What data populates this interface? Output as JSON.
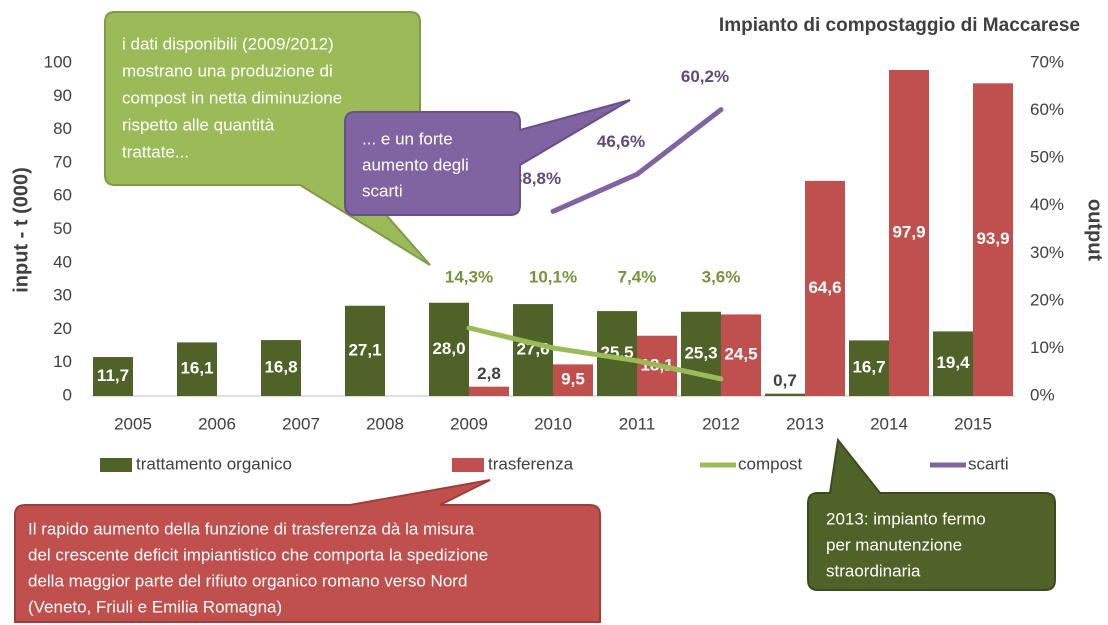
{
  "chart_data": {
    "type": "bar",
    "title": "Impianto di compostaggio di Maccarese",
    "ylabel": "input - t (000)",
    "y2label": "output",
    "categories": [
      "2005",
      "2006",
      "2007",
      "2008",
      "2009",
      "2010",
      "2011",
      "2012",
      "2013",
      "2014",
      "2015"
    ],
    "ylim": [
      0,
      100
    ],
    "yticks": [
      0,
      10,
      20,
      30,
      40,
      50,
      60,
      70,
      80,
      90,
      100
    ],
    "y2lim": [
      0,
      70
    ],
    "y2ticks": [
      {
        "value": 0,
        "label": "0%"
      },
      {
        "value": 10,
        "label": "10%"
      },
      {
        "value": 20,
        "label": "20%"
      },
      {
        "value": 30,
        "label": "30%"
      },
      {
        "value": 40,
        "label": "40%"
      },
      {
        "value": 50,
        "label": "50%"
      },
      {
        "value": 60,
        "label": "60%"
      },
      {
        "value": 70,
        "label": "70%"
      }
    ],
    "grid": false,
    "series": [
      {
        "name": "trattamento organico",
        "type": "bar",
        "color": "#4f6228",
        "values": [
          11.7,
          16.1,
          16.8,
          27.1,
          28.0,
          27.6,
          25.5,
          25.3,
          0.7,
          16.7,
          19.4
        ],
        "value_labels": [
          "11,7",
          "16,1",
          "16,8",
          "27,1",
          "28,0",
          "27,6",
          "25,5",
          "25,3",
          "0,7",
          "16,7",
          "19,4"
        ]
      },
      {
        "name": "trasferenza",
        "type": "bar",
        "color": "#c0504d",
        "values": [
          null,
          null,
          null,
          null,
          2.8,
          9.5,
          18.1,
          24.5,
          64.6,
          97.9,
          93.9
        ],
        "value_labels": [
          null,
          null,
          null,
          null,
          "2,8",
          "9,5",
          "18,1",
          "24,5",
          "64,6",
          "97,9",
          "93,9"
        ]
      },
      {
        "name": "compost",
        "type": "line",
        "axis": "y2",
        "color": "#9bbb59",
        "values": [
          null,
          null,
          null,
          null,
          14.3,
          10.1,
          7.4,
          3.6,
          null,
          null,
          null
        ],
        "value_labels": [
          null,
          null,
          null,
          null,
          "14,3%",
          "10,1%",
          "7,4%",
          "3,6%",
          null,
          null,
          null
        ]
      },
      {
        "name": "scarti",
        "type": "line",
        "axis": "y2",
        "color": "#8064a2",
        "values": [
          null,
          null,
          null,
          null,
          null,
          38.8,
          46.6,
          60.2,
          null,
          null,
          null
        ],
        "value_labels": [
          null,
          null,
          null,
          null,
          null,
          "38,8%",
          "46,6%",
          "60,2%",
          null,
          null,
          null
        ]
      }
    ],
    "annotations": [
      {
        "lines": [
          "i dati disponibili (2009/2012)",
          "mostrano una produzione di",
          "compost in netta diminuzione",
          "rispetto alle quantità",
          "trattate..."
        ]
      },
      {
        "lines": [
          "... e un forte",
          "aumento degli",
          "scarti"
        ]
      },
      {
        "lines": [
          "Il rapido aumento della funzione di trasferenza dà la misura",
          "del crescente deficit impiantistico che comporta la spedizione",
          "della maggior parte del rifiuto organico romano verso Nord",
          "(Veneto, Friuli e Emilia Romagna)"
        ]
      },
      {
        "lines": [
          "2013: impianto fermo",
          "per manutenzione",
          "straordinaria"
        ]
      }
    ]
  }
}
